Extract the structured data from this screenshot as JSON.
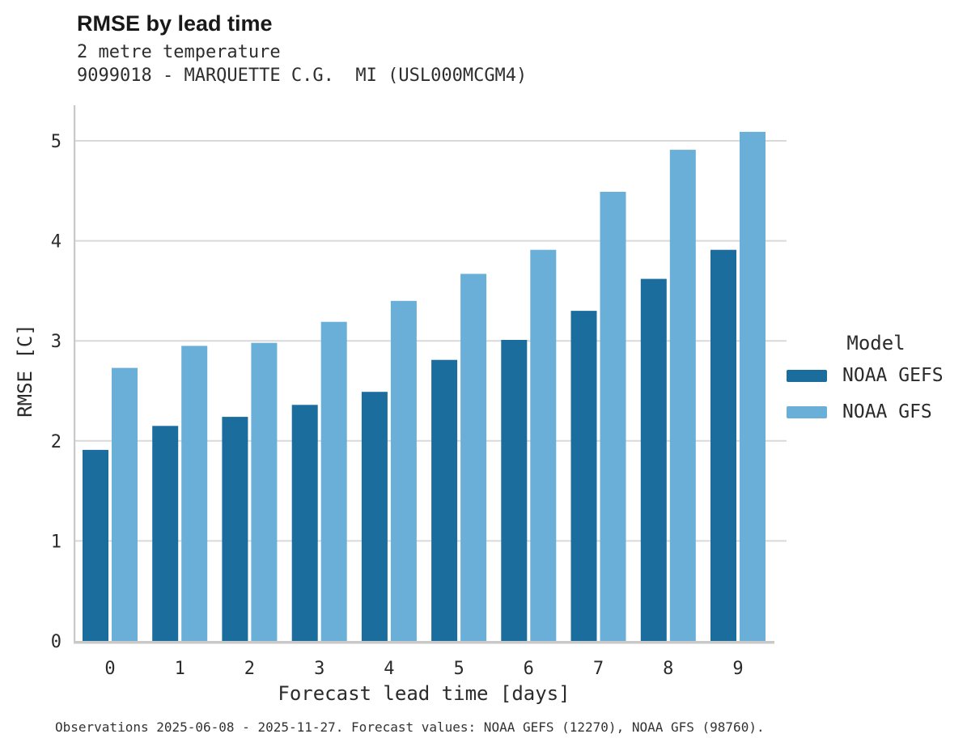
{
  "chart_data": {
    "type": "bar",
    "title": "RMSE by lead time",
    "subtitle1": "2 metre temperature",
    "subtitle2": "9099018 - MARQUETTE C.G.  MI (USL000MCGM4)",
    "categories": [
      0,
      1,
      2,
      3,
      4,
      5,
      6,
      7,
      8,
      9
    ],
    "series": [
      {
        "name": "NOAA GEFS",
        "color": "#1b6d9d",
        "values": [
          1.91,
          2.15,
          2.24,
          2.36,
          2.49,
          2.81,
          3.01,
          3.3,
          3.62,
          3.91
        ]
      },
      {
        "name": "NOAA GFS",
        "color": "#69afd7",
        "values": [
          2.73,
          2.95,
          2.98,
          3.19,
          3.4,
          3.67,
          3.91,
          4.49,
          4.91,
          5.09
        ]
      }
    ],
    "xlabel": "Forecast lead time [days]",
    "ylabel": "RMSE [C]",
    "ylim": [
      0,
      5.35
    ],
    "yticks": [
      0,
      1,
      2,
      3,
      4,
      5
    ],
    "grid": true,
    "legend_title": "Model",
    "legend_position": "right",
    "grid_color": "#d9d9d9",
    "spine_color": "#c9c9c9"
  },
  "footnote": "Observations 2025-06-08 - 2025-11-27. Forecast values: NOAA GEFS (12270), NOAA GFS (98760)."
}
